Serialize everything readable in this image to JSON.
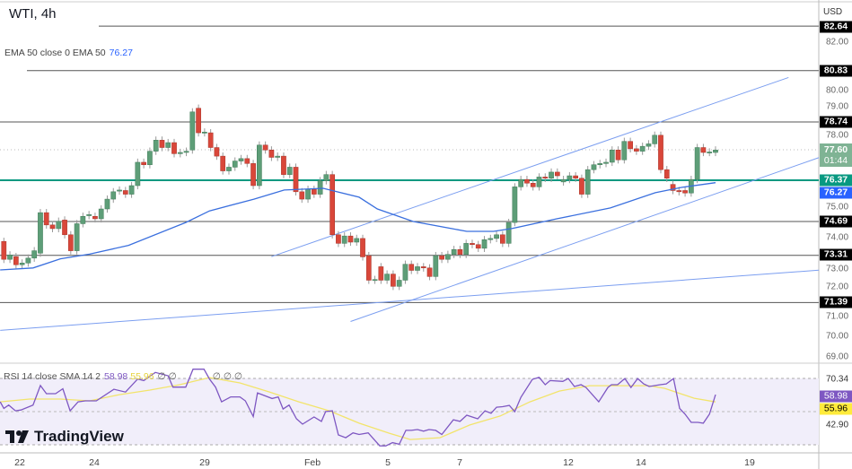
{
  "header": {
    "title": "WTI, 4h",
    "currency": "USD"
  },
  "ema_legend": {
    "label": "EMA 50 close 0 EMA 50",
    "value": "76.27"
  },
  "rsi_legend": {
    "label": "RSI 14 close SMA 14 2",
    "rsi": "58.98",
    "sma": "55.96",
    "extra": "∅ ∅",
    "extra2": "∅ ∅ ∅"
  },
  "logo": "TradingView",
  "colors": {
    "up": "#5e9e78",
    "down": "#d9473a",
    "ema": "#3a6fde",
    "trend": "#7b9ef0",
    "support": "#089981",
    "rsi": "#7e57c2",
    "rsi_sma": "#f2e46b",
    "level": "#555555"
  },
  "price_axis": {
    "ticks": [
      "82.00",
      "80.00",
      "79.00",
      "78.00",
      "75.00",
      "74.00",
      "73.00",
      "72.00",
      "71.00",
      "70.00",
      "69.00"
    ]
  },
  "price_tags": {
    "levels": [
      "82.64",
      "80.83",
      "78.74",
      "74.69",
      "73.31",
      "71.39"
    ],
    "current_price": "77.60",
    "countdown": "01:44",
    "support": "76.37",
    "ema": "76.27"
  },
  "rsi_axis": {
    "upper": "70.34",
    "rsi": "58.98",
    "sma": "55.96",
    "lower": "42.90"
  },
  "x_axis": {
    "labels": [
      "22",
      "24",
      "29",
      "Feb",
      "5",
      "7",
      "12",
      "14",
      "19"
    ]
  },
  "chart_data": {
    "type": "candlestick",
    "title": "WTI, 4h",
    "ylim": [
      68.8,
      83.2
    ],
    "x_labels": [
      "22",
      "24",
      "29",
      "Feb",
      "5",
      "7",
      "12",
      "14",
      "19"
    ],
    "x_label_candle_index": [
      2.6,
      14.9,
      33,
      50.7,
      63.1,
      74.9,
      92.8,
      104.8,
      122.6
    ],
    "candles_open_close": [
      [
        73.88,
        73.15
      ],
      [
        73.15,
        73.33
      ],
      [
        73.26,
        72.93
      ],
      [
        72.93,
        73.0
      ],
      [
        73.0,
        73.2
      ],
      [
        73.2,
        73.5
      ],
      [
        73.4,
        75.05
      ],
      [
        75.05,
        74.55
      ],
      [
        74.55,
        74.4
      ],
      [
        74.4,
        74.7
      ],
      [
        74.75,
        74.15
      ],
      [
        74.15,
        73.5
      ],
      [
        73.5,
        74.6
      ],
      [
        74.6,
        74.9
      ],
      [
        74.93,
        74.97
      ],
      [
        74.9,
        74.8
      ],
      [
        74.8,
        75.2
      ],
      [
        75.2,
        75.6
      ],
      [
        75.6,
        75.9
      ],
      [
        75.93,
        75.97
      ],
      [
        75.95,
        75.8
      ],
      [
        75.8,
        76.15
      ],
      [
        76.15,
        77.1
      ],
      [
        77.1,
        77.0
      ],
      [
        77.0,
        77.55
      ],
      [
        77.55,
        78.0
      ],
      [
        78.0,
        77.7
      ],
      [
        77.7,
        77.9
      ],
      [
        77.9,
        77.45
      ],
      [
        77.45,
        77.5
      ],
      [
        77.5,
        77.55
      ],
      [
        77.6,
        79.15
      ],
      [
        79.3,
        78.3
      ],
      [
        78.3,
        78.33
      ],
      [
        78.3,
        77.7
      ],
      [
        77.7,
        77.35
      ],
      [
        77.35,
        76.75
      ],
      [
        76.75,
        76.9
      ],
      [
        76.9,
        77.15
      ],
      [
        77.15,
        77.25
      ],
      [
        77.25,
        77.05
      ],
      [
        77.05,
        76.15
      ],
      [
        76.15,
        77.8
      ],
      [
        77.8,
        77.6
      ],
      [
        77.6,
        77.3
      ],
      [
        77.3,
        77.35
      ],
      [
        77.35,
        76.6
      ],
      [
        76.6,
        76.9
      ],
      [
        76.9,
        75.9
      ],
      [
        75.9,
        75.6
      ],
      [
        75.6,
        76.0
      ],
      [
        76.0,
        75.8
      ],
      [
        75.8,
        76.35
      ],
      [
        76.35,
        76.6
      ],
      [
        76.6,
        74.15
      ],
      [
        74.15,
        73.8
      ],
      [
        73.8,
        74.1
      ],
      [
        74.1,
        73.85
      ],
      [
        73.85,
        74.0
      ],
      [
        74.0,
        73.25
      ],
      [
        73.3,
        72.3
      ],
      [
        72.3,
        72.33
      ],
      [
        72.85,
        72.3
      ],
      [
        72.3,
        72.55
      ],
      [
        72.55,
        72.05
      ],
      [
        72.05,
        72.3
      ],
      [
        72.3,
        72.95
      ],
      [
        72.95,
        72.7
      ],
      [
        72.7,
        72.85
      ],
      [
        72.85,
        72.8
      ],
      [
        72.8,
        72.45
      ],
      [
        72.45,
        73.3
      ],
      [
        73.3,
        73.15
      ],
      [
        73.15,
        73.35
      ],
      [
        73.35,
        73.55
      ],
      [
        73.55,
        73.35
      ],
      [
        73.35,
        73.8
      ],
      [
        73.8,
        73.75
      ],
      [
        73.75,
        73.6
      ],
      [
        73.6,
        73.95
      ],
      [
        73.95,
        74.0
      ],
      [
        74.0,
        74.15
      ],
      [
        74.15,
        73.8
      ],
      [
        73.8,
        74.65
      ],
      [
        74.65,
        76.1
      ],
      [
        76.1,
        76.4
      ],
      [
        76.4,
        76.25
      ],
      [
        76.25,
        76.1
      ],
      [
        76.1,
        76.5
      ],
      [
        76.5,
        76.45
      ],
      [
        76.45,
        76.7
      ],
      [
        76.7,
        76.55
      ],
      [
        76.3,
        76.4
      ],
      [
        76.4,
        76.55
      ],
      [
        76.55,
        76.45
      ],
      [
        76.45,
        75.8
      ],
      [
        75.8,
        76.8
      ],
      [
        76.8,
        77.0
      ],
      [
        77.0,
        77.05
      ],
      [
        77.05,
        77.1
      ],
      [
        77.1,
        77.6
      ],
      [
        77.6,
        77.2
      ],
      [
        77.2,
        77.95
      ],
      [
        77.95,
        77.65
      ],
      [
        77.65,
        77.55
      ],
      [
        77.55,
        77.75
      ],
      [
        77.75,
        77.85
      ],
      [
        77.85,
        78.2
      ],
      [
        78.2,
        76.8
      ],
      [
        76.8,
        76.45
      ],
      [
        76.2,
        75.95
      ],
      [
        75.95,
        75.9
      ],
      [
        75.95,
        75.85
      ],
      [
        75.85,
        76.4
      ],
      [
        76.4,
        77.7
      ],
      [
        77.7,
        77.5
      ],
      [
        77.5,
        77.52
      ],
      [
        77.5,
        77.6
      ]
    ],
    "ema50": {
      "candle_index": [
        -0.6,
        4.8,
        9.3,
        14.1,
        20.5,
        29.9,
        33.8,
        41.1,
        46.1,
        52.5,
        58.4,
        61.4,
        67.3,
        76.1,
        80.5,
        83.5,
        90.9,
        99.7,
        107.1,
        111.5,
        117
      ],
      "values": [
        72.72,
        72.8,
        73.17,
        73.36,
        73.72,
        74.65,
        75.12,
        75.6,
        75.97,
        76.04,
        75.68,
        75.2,
        74.69,
        74.29,
        74.29,
        74.4,
        74.8,
        75.24,
        75.86,
        76.08,
        76.27
      ]
    },
    "horizontal_levels": [
      82.64,
      80.83,
      78.74,
      76.37,
      74.69,
      73.31,
      71.39
    ],
    "trendlines": [
      {
        "from": [
          44,
          73.26
        ],
        "to": [
          129,
          80.55
        ]
      },
      {
        "from": [
          57,
          70.62
        ],
        "to": [
          134,
          77.29
        ]
      },
      {
        "from": [
          -0.6,
          70.26
        ],
        "to": [
          134,
          72.71
        ]
      }
    ],
    "rsi": {
      "ylim": [
        29.66,
        70.34
      ],
      "candle_index": [
        -0.6,
        0,
        0.8,
        1.9,
        2.8,
        4.8,
        6,
        7,
        8.5,
        9.7,
        10.9,
        12.2,
        13.4,
        15.2,
        18.1,
        20,
        22,
        23,
        24.9,
        27,
        27.8,
        29.9,
        31.1,
        32.9,
        33.8,
        34.8,
        35.8,
        37.3,
        38.8,
        39.7,
        41,
        41.7,
        44.1,
        45.1,
        45.9,
        46.9,
        48.1,
        49.1,
        51,
        52.2,
        52.9,
        54,
        55,
        56.2,
        57.4,
        58.4,
        59.9,
        61.8,
        62.8,
        63.9,
        65,
        66.1,
        67,
        68,
        69,
        69.9,
        71,
        72,
        73.9,
        75,
        76.1,
        77.9,
        79.1,
        80.1,
        81,
        82,
        83.1,
        84,
        85,
        86.9,
        88,
        89,
        89.8,
        91.9,
        92.8,
        93.8,
        94.9,
        95.7,
        97.8,
        99.3,
        99.9,
        100.9,
        102.1,
        103.1,
        104.2,
        105.2,
        106.1,
        107.9,
        108.9,
        110.1,
        111.1,
        112,
        113,
        114.1,
        115,
        116,
        117
      ],
      "values": [
        56,
        52,
        54,
        50.5,
        51,
        54,
        66,
        61,
        61,
        64,
        50.5,
        56,
        56.6,
        56.6,
        63.7,
        62,
        70,
        69,
        74,
        72,
        65,
        65,
        76,
        76,
        70,
        65,
        56,
        59,
        59,
        56.6,
        47,
        61.5,
        58,
        59,
        51.6,
        54,
        45.6,
        42.3,
        46.7,
        44,
        50,
        50.5,
        35.7,
        34,
        37,
        36,
        37,
        29,
        29,
        31,
        30,
        38.5,
        38.5,
        39,
        38,
        39,
        38.5,
        36,
        45,
        44,
        47.8,
        45.6,
        50.5,
        49,
        52.7,
        53,
        53.8,
        50,
        58.8,
        69.8,
        71,
        66.5,
        69,
        68.5,
        70.3,
        65.4,
        66.5,
        64.8,
        56,
        64.8,
        66.5,
        66.5,
        70.3,
        64.8,
        70.3,
        67,
        65.4,
        66.5,
        67,
        70.3,
        52,
        48.4,
        43.4,
        43.4,
        42.9,
        48.4,
        60.4,
        58.8,
        58.98
      ]
    },
    "rsi_sma": {
      "candle_index": [
        -0.6,
        4.2,
        9.3,
        14.1,
        19,
        24,
        28.9,
        33.8,
        38.8,
        43.6,
        48.5,
        53.5,
        58.4,
        63.3,
        66.8,
        71.7,
        76.6,
        81.6,
        86.5,
        91.3,
        96.3,
        101.2,
        106.1,
        108.6,
        113.5,
        117
      ],
      "values": [
        56,
        57.7,
        57.7,
        56.6,
        60.4,
        63.2,
        66.5,
        70.9,
        67.6,
        62.1,
        56,
        50.5,
        42.9,
        36.8,
        32.9,
        34,
        41.8,
        47.3,
        56,
        62.6,
        65.9,
        65.9,
        65.9,
        64.3,
        58.2,
        55.96
      ]
    }
  }
}
